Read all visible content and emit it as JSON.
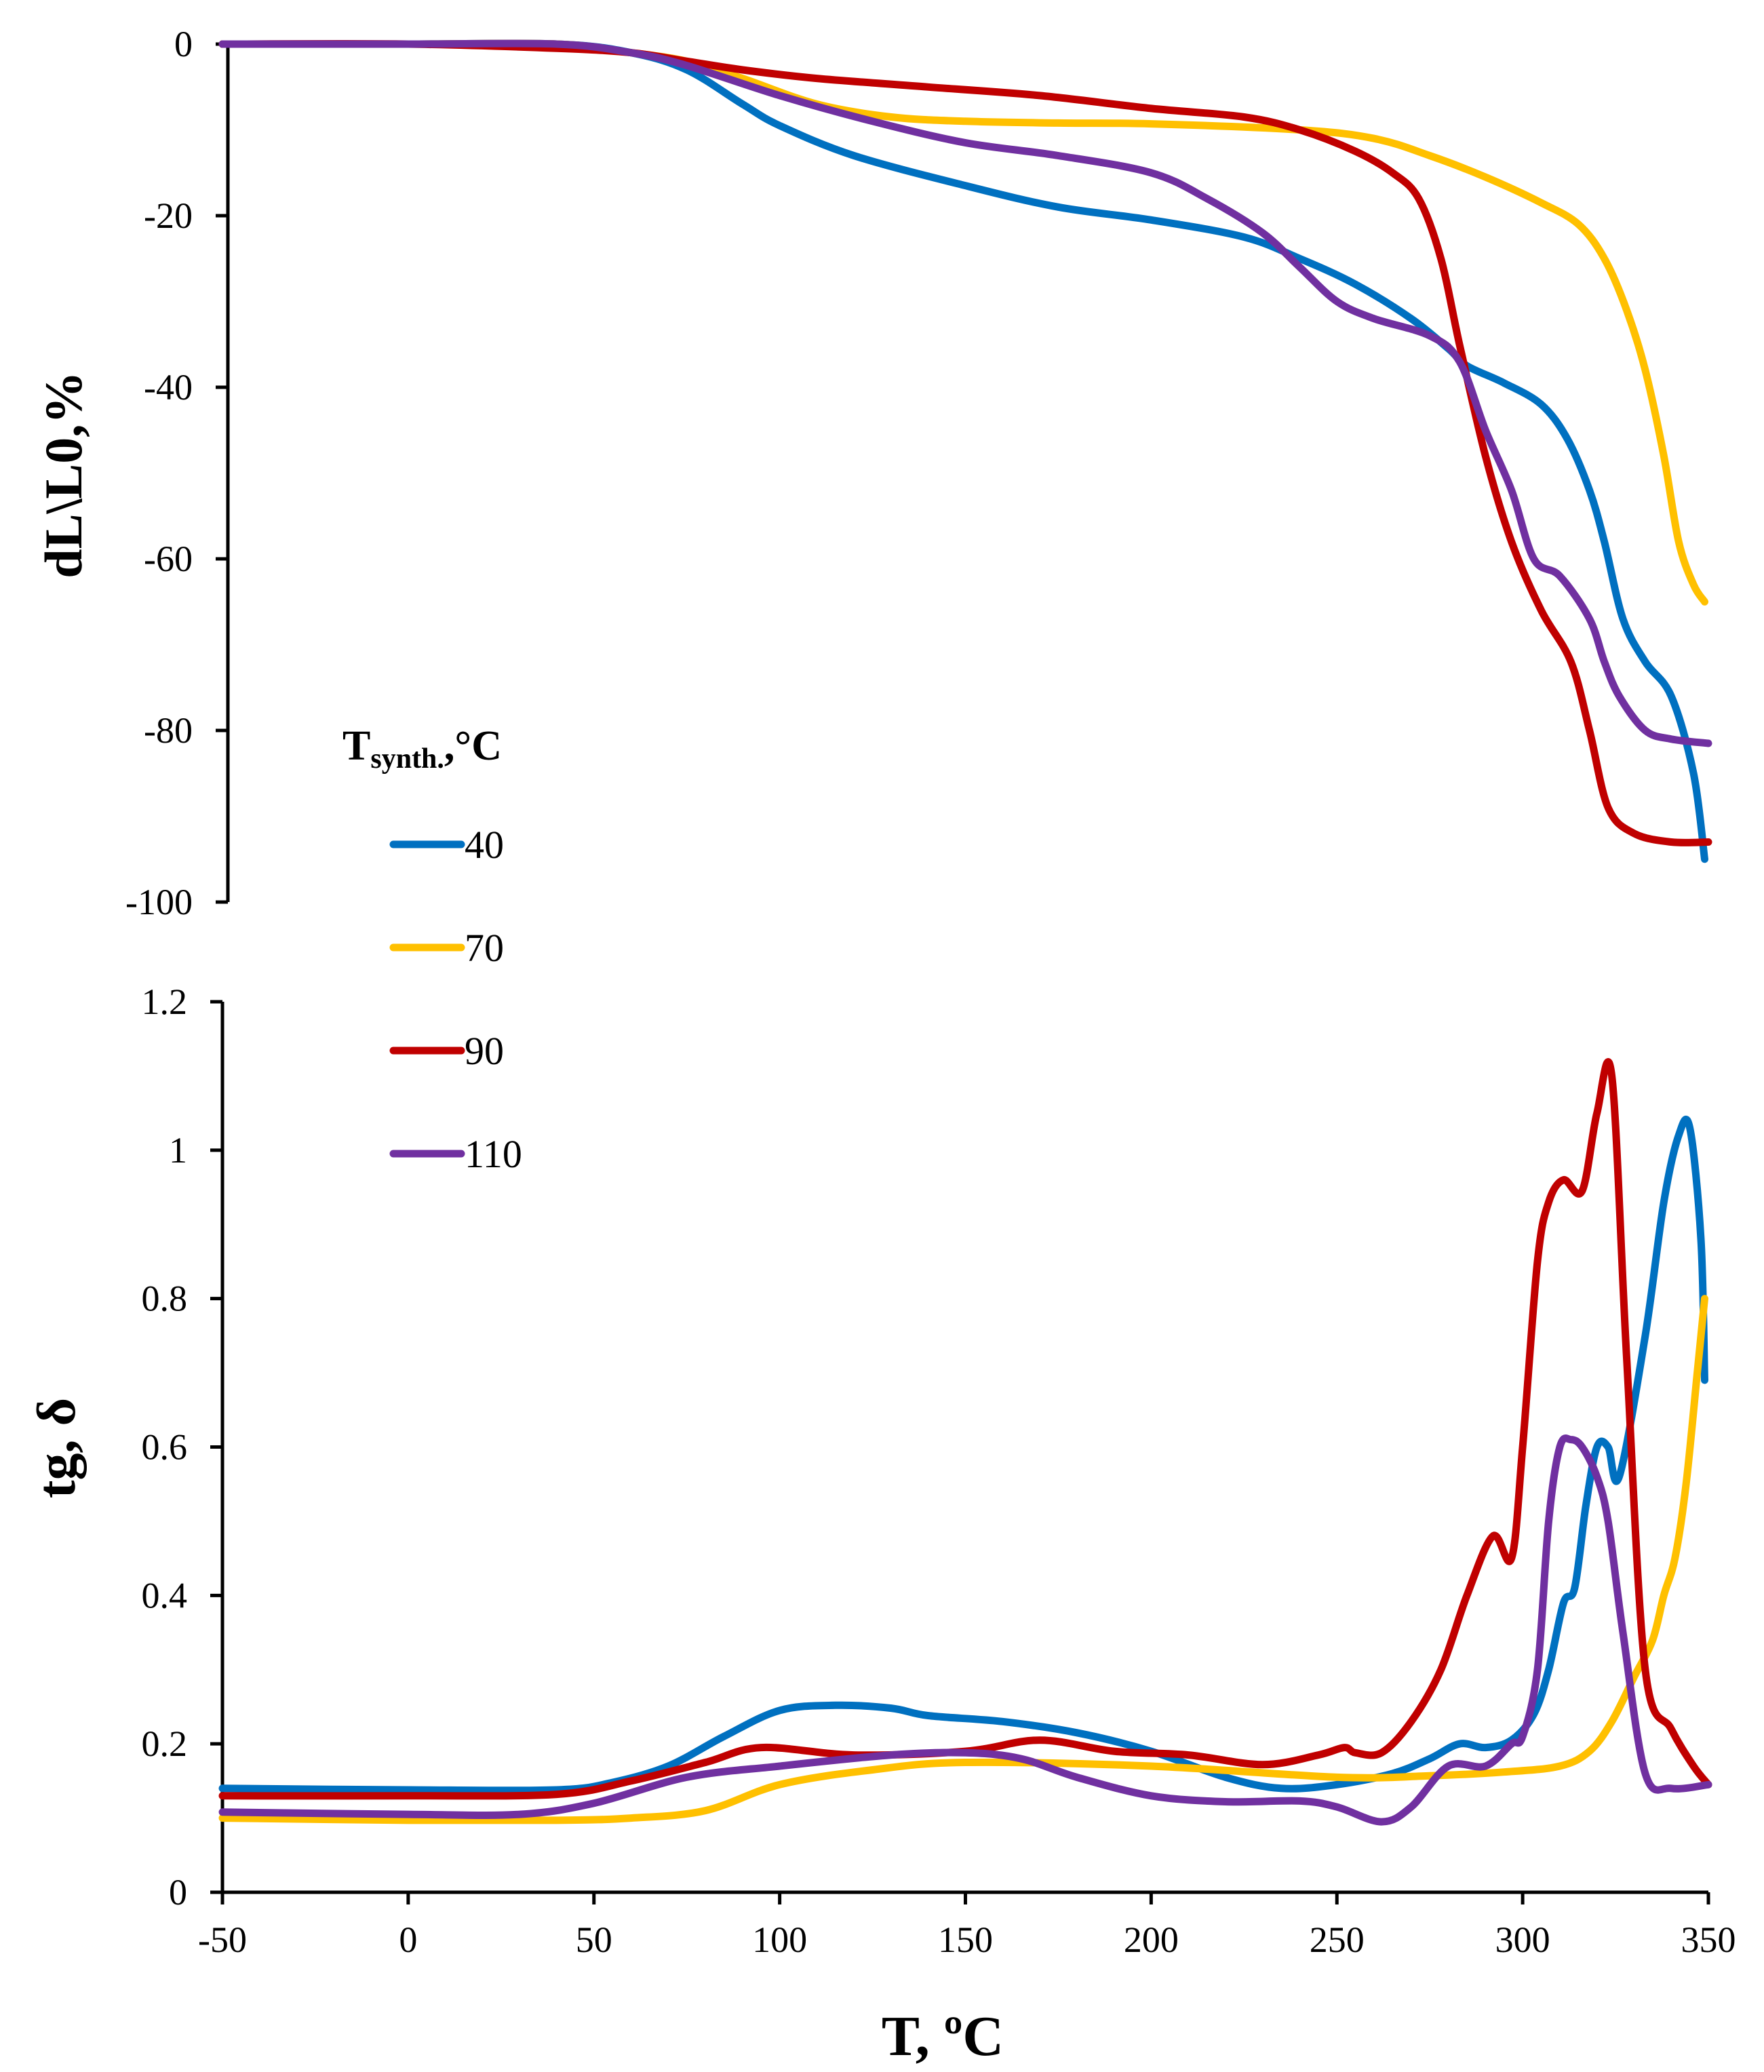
{
  "legend": {
    "title_main": "T",
    "title_sub": "synth.",
    "title_unit": ",°C",
    "entries": [
      {
        "label": "40",
        "color": "#0070C0"
      },
      {
        "label": "70",
        "color": "#FFC000"
      },
      {
        "label": "90",
        "color": "#C00000"
      },
      {
        "label": "110",
        "color": "#7030A0"
      }
    ]
  },
  "chart_data": [
    {
      "type": "line",
      "title": "",
      "xlabel": "",
      "ylabel": "dL\\L0,%",
      "xlim": [
        -50,
        350
      ],
      "ylim": [
        -100,
        0
      ],
      "yticks": [
        0,
        -20,
        -40,
        -60,
        -80,
        -100
      ],
      "ytick_labels": [
        "0",
        "-20",
        "-40",
        "-60",
        "-80",
        "-100"
      ],
      "grid": false,
      "series": [
        {
          "name": "40",
          "color": "#0070C0",
          "x": [
            -50,
            0,
            40,
            60,
            75,
            90,
            100,
            120,
            150,
            175,
            200,
            225,
            240,
            255,
            270,
            280,
            285,
            295,
            305,
            312,
            318,
            322,
            327,
            333,
            340,
            346,
            349
          ],
          "y": [
            0,
            0,
            0,
            -1,
            -3,
            -7,
            -9.5,
            -13,
            -16.5,
            -19,
            -20.5,
            -22.5,
            -25,
            -28,
            -32,
            -35.5,
            -37.5,
            -39.5,
            -42,
            -46,
            -52,
            -58,
            -67,
            -72,
            -76,
            -85,
            -95
          ]
        },
        {
          "name": "70",
          "color": "#FFC000",
          "x": [
            -50,
            0,
            40,
            60,
            75,
            90,
            110,
            130,
            150,
            175,
            200,
            240,
            260,
            275,
            290,
            305,
            315,
            322,
            328,
            333,
            338,
            342,
            346,
            349
          ],
          "y": [
            0,
            0,
            0,
            -1,
            -2,
            -4,
            -7,
            -8.5,
            -9,
            -9.2,
            -9.3,
            -10,
            -11,
            -13,
            -15.5,
            -18.5,
            -21,
            -25,
            -31,
            -38,
            -48,
            -58,
            -63,
            -65
          ]
        },
        {
          "name": "90",
          "color": "#C00000",
          "x": [
            -50,
            0,
            40,
            60,
            75,
            90,
            110,
            140,
            170,
            200,
            225,
            240,
            255,
            265,
            272,
            278,
            283,
            290,
            297,
            305,
            313,
            318,
            323,
            330,
            340,
            350
          ],
          "y": [
            0,
            0,
            -0.5,
            -1,
            -2,
            -3,
            -4,
            -5,
            -6,
            -7.5,
            -8.5,
            -10,
            -12.5,
            -15,
            -18,
            -25,
            -35,
            -48,
            -58,
            -66,
            -72,
            -80,
            -89,
            -92,
            -93,
            -93
          ]
        },
        {
          "name": "110",
          "color": "#7030A0",
          "x": [
            -50,
            0,
            40,
            60,
            75,
            100,
            125,
            150,
            175,
            200,
            215,
            230,
            240,
            250,
            260,
            275,
            283,
            290,
            297,
            303,
            310,
            318,
            322,
            326,
            333,
            340,
            350
          ],
          "y": [
            0,
            0,
            0,
            -1,
            -2.5,
            -6,
            -9,
            -11.5,
            -13,
            -15,
            -18,
            -22,
            -26,
            -30,
            -32,
            -34,
            -37,
            -45,
            -52,
            -60,
            -62,
            -67,
            -72,
            -76,
            -80,
            -81,
            -81.5
          ]
        }
      ]
    },
    {
      "type": "line",
      "title": "",
      "xlabel": "T, ºC",
      "ylabel": "tg, δ",
      "xlim": [
        -50,
        350
      ],
      "ylim": [
        0,
        1.2
      ],
      "xticks": [
        -50,
        0,
        50,
        100,
        150,
        200,
        250,
        300,
        350
      ],
      "xtick_labels": [
        "-50",
        "0",
        "50",
        "100",
        "150",
        "200",
        "250",
        "300",
        "350"
      ],
      "yticks": [
        0,
        0.2,
        0.4,
        0.6,
        0.8,
        1.0,
        1.2
      ],
      "ytick_labels": [
        "0",
        "0.2",
        "0.4",
        "0.6",
        "0.8",
        "1",
        "1.2"
      ],
      "grid": false,
      "series": [
        {
          "name": "40",
          "color": "#0070C0",
          "x": [
            -50,
            0,
            40,
            55,
            70,
            85,
            100,
            115,
            130,
            140,
            160,
            180,
            200,
            220,
            235,
            250,
            265,
            275,
            283,
            290,
            297,
            303,
            307,
            311,
            314,
            317,
            320,
            323,
            326,
            333,
            338,
            342,
            345,
            348,
            349
          ],
          "y": [
            0.14,
            0.138,
            0.138,
            0.148,
            0.17,
            0.21,
            0.245,
            0.252,
            0.248,
            0.238,
            0.23,
            0.215,
            0.19,
            0.155,
            0.14,
            0.145,
            0.16,
            0.18,
            0.2,
            0.195,
            0.205,
            0.24,
            0.3,
            0.39,
            0.41,
            0.52,
            0.6,
            0.6,
            0.56,
            0.75,
            0.93,
            1.02,
            1.03,
            0.88,
            0.69
          ]
        },
        {
          "name": "70",
          "color": "#FFC000",
          "x": [
            -50,
            0,
            40,
            60,
            80,
            100,
            125,
            150,
            200,
            250,
            275,
            295,
            310,
            318,
            324,
            330,
            335,
            338,
            341,
            344,
            347,
            349
          ],
          "y": [
            0.1,
            0.097,
            0.097,
            0.1,
            0.11,
            0.145,
            0.165,
            0.175,
            0.17,
            0.155,
            0.157,
            0.162,
            0.17,
            0.19,
            0.23,
            0.29,
            0.34,
            0.4,
            0.45,
            0.55,
            0.7,
            0.8
          ]
        },
        {
          "name": "90",
          "color": "#C00000",
          "x": [
            -50,
            0,
            40,
            60,
            80,
            95,
            120,
            150,
            170,
            190,
            210,
            230,
            245,
            252,
            255,
            262,
            270,
            278,
            285,
            292,
            297,
            300,
            304,
            307,
            311,
            316,
            320,
            324,
            328,
            333,
            340,
            346,
            350
          ],
          "y": [
            0.13,
            0.13,
            0.132,
            0.15,
            0.175,
            0.195,
            0.185,
            0.19,
            0.205,
            0.19,
            0.185,
            0.172,
            0.185,
            0.195,
            0.188,
            0.188,
            0.23,
            0.3,
            0.4,
            0.48,
            0.45,
            0.6,
            0.85,
            0.93,
            0.96,
            0.945,
            1.05,
            1.1,
            0.72,
            0.3,
            0.22,
            0.17,
            0.145
          ]
        },
        {
          "name": "110",
          "color": "#7030A0",
          "x": [
            -50,
            0,
            30,
            50,
            75,
            100,
            130,
            150,
            165,
            180,
            200,
            220,
            240,
            250,
            262,
            270,
            280,
            290,
            297,
            300,
            304,
            307,
            310,
            313,
            316,
            320,
            323,
            327,
            333,
            340,
            350
          ],
          "y": [
            0.108,
            0.105,
            0.105,
            0.12,
            0.155,
            0.17,
            0.185,
            0.188,
            0.18,
            0.155,
            0.13,
            0.122,
            0.123,
            0.115,
            0.095,
            0.115,
            0.17,
            0.17,
            0.2,
            0.21,
            0.3,
            0.5,
            0.6,
            0.61,
            0.6,
            0.56,
            0.5,
            0.35,
            0.16,
            0.14,
            0.145
          ]
        }
      ]
    }
  ]
}
